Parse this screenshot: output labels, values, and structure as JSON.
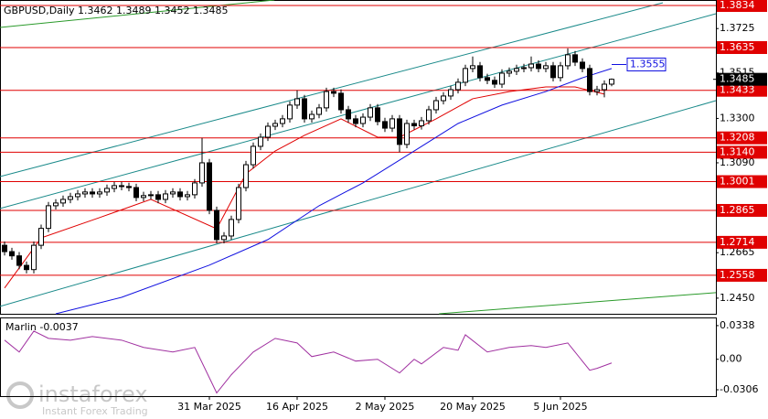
{
  "chart_data": [
    {
      "type": "candlestick",
      "title": "GBPUSD,Daily",
      "xlim": [
        -0.625,
        97.25
      ],
      "ylim": [
        1.2376,
        1.386
      ],
      "yticks": [
        1.3725,
        1.3515,
        {
          "value": 1.33,
          "label": "1.3300"
        },
        {
          "value": 1.309,
          "label": "1.3090"
        },
        1.2665,
        {
          "value": 1.245,
          "label": "1.2450"
        }
      ],
      "xticks": [
        {
          "value": 28,
          "label": "31 Mar 2025"
        },
        {
          "value": 40,
          "label": "16 Apr 2025"
        },
        {
          "value": 52,
          "label": "2 May 2025"
        },
        {
          "value": 64,
          "label": "20 May 2025"
        },
        {
          "value": 76,
          "label": "5 Jun 2025"
        }
      ],
      "open": [
        1.27,
        1.267,
        1.265,
        1.2605,
        1.2585,
        1.27,
        1.278,
        1.2887,
        1.29,
        1.2917,
        1.293,
        1.2943,
        1.2952,
        1.2943,
        1.2952,
        1.2969,
        1.2982,
        1.2978,
        1.2973,
        1.2926,
        1.2935,
        1.2939,
        1.2917,
        1.2943,
        1.2952,
        1.293,
        1.2939,
        1.2995,
        1.309,
        1.2865,
        1.2727,
        1.2744,
        1.2822,
        1.2973,
        1.3081,
        1.3168,
        1.3211,
        1.3263,
        1.3276,
        1.3298,
        1.3363,
        1.3393,
        1.3298,
        1.3319,
        1.335,
        1.3427,
        1.3419,
        1.3341,
        1.3298,
        1.3276,
        1.3306,
        1.335,
        1.3285,
        1.3254,
        1.3298,
        1.3177,
        1.3276,
        1.3265,
        1.3289,
        1.3341,
        1.3384,
        1.3406,
        1.3436,
        1.3471,
        1.3536,
        1.3549,
        1.3493,
        1.348,
        1.3462,
        1.3514,
        1.3523,
        1.3536,
        1.354,
        1.3557,
        1.3536,
        1.3549,
        1.3493,
        1.3549,
        1.3601,
        1.3566,
        1.3536,
        1.3427,
        1.3436,
        1.3462
      ],
      "high": [
        1.2718,
        1.2688,
        1.2668,
        1.2623,
        1.2718,
        1.2798,
        1.2905,
        1.2918,
        1.2935,
        1.2948,
        1.2961,
        1.297,
        1.297,
        1.297,
        1.2987,
        1.3,
        1.3,
        1.2996,
        1.2991,
        1.2953,
        1.2957,
        1.2957,
        1.2961,
        1.297,
        1.297,
        1.2957,
        1.3013,
        1.3208,
        1.3108,
        1.2883,
        1.2762,
        1.284,
        1.2991,
        1.3099,
        1.3186,
        1.3229,
        1.3281,
        1.3294,
        1.3316,
        1.3381,
        1.3433,
        1.3411,
        1.3337,
        1.3368,
        1.3445,
        1.3445,
        1.3437,
        1.3359,
        1.3316,
        1.3324,
        1.3368,
        1.3368,
        1.3303,
        1.3316,
        1.3316,
        1.3294,
        1.3294,
        1.3307,
        1.3359,
        1.3402,
        1.3424,
        1.3454,
        1.3489,
        1.3554,
        1.3593,
        1.3567,
        1.3511,
        1.3498,
        1.3532,
        1.3541,
        1.3554,
        1.3558,
        1.3593,
        1.3575,
        1.3567,
        1.3567,
        1.3567,
        1.3631,
        1.3619,
        1.3584,
        1.3554,
        1.3454,
        1.348,
        1.3489
      ],
      "low": [
        1.2652,
        1.2632,
        1.2587,
        1.2567,
        1.2567,
        1.2682,
        1.2762,
        1.2869,
        1.2882,
        1.2899,
        1.2912,
        1.2925,
        1.2925,
        1.2925,
        1.2934,
        1.2951,
        1.296,
        1.2955,
        1.2908,
        1.2908,
        1.2917,
        1.2899,
        1.2899,
        1.2925,
        1.2912,
        1.2912,
        1.2921,
        1.2977,
        1.2847,
        1.2709,
        1.2709,
        1.2726,
        1.2804,
        1.2955,
        1.3063,
        1.315,
        1.3193,
        1.3245,
        1.3258,
        1.328,
        1.3345,
        1.328,
        1.328,
        1.3301,
        1.3332,
        1.3401,
        1.3323,
        1.328,
        1.3258,
        1.3258,
        1.3288,
        1.3267,
        1.3236,
        1.3236,
        1.314,
        1.3159,
        1.3247,
        1.3247,
        1.3271,
        1.3323,
        1.3366,
        1.3388,
        1.3418,
        1.3453,
        1.3518,
        1.3475,
        1.3462,
        1.3444,
        1.3444,
        1.3496,
        1.3505,
        1.3518,
        1.3522,
        1.3518,
        1.3518,
        1.3475,
        1.3475,
        1.3531,
        1.3548,
        1.3518,
        1.3409,
        1.3409,
        1.34,
        1.3452
      ],
      "close": [
        1.267,
        1.265,
        1.2605,
        1.2585,
        1.27,
        1.278,
        1.2887,
        1.29,
        1.2917,
        1.293,
        1.2943,
        1.2952,
        1.2943,
        1.2952,
        1.2969,
        1.2982,
        1.2978,
        1.2973,
        1.2926,
        1.2935,
        1.2939,
        1.2917,
        1.2943,
        1.2952,
        1.293,
        1.2939,
        1.2995,
        1.309,
        1.2865,
        1.2727,
        1.2744,
        1.2822,
        1.2973,
        1.3081,
        1.3168,
        1.3211,
        1.3263,
        1.3276,
        1.3298,
        1.3363,
        1.3393,
        1.3298,
        1.3319,
        1.335,
        1.3427,
        1.3419,
        1.3341,
        1.3298,
        1.3276,
        1.3306,
        1.335,
        1.3285,
        1.3254,
        1.3298,
        1.3177,
        1.3276,
        1.3265,
        1.3289,
        1.3341,
        1.3384,
        1.3406,
        1.3436,
        1.3471,
        1.3536,
        1.3549,
        1.3493,
        1.348,
        1.3462,
        1.3514,
        1.3523,
        1.3536,
        1.354,
        1.3557,
        1.3536,
        1.3549,
        1.3493,
        1.3549,
        1.3601,
        1.3566,
        1.3536,
        1.3427,
        1.3436,
        1.3462,
        1.3485
      ],
      "candle_color": "#000000",
      "series": [
        {
          "color": "#e00000",
          "x": [
            0,
            5,
            13,
            20,
            29,
            33,
            37,
            41,
            46,
            51,
            54,
            59,
            64,
            69,
            74,
            78,
            82
          ],
          "values": [
            1.2498,
            1.2735,
            1.2831,
            1.2917,
            1.2778,
            1.3038,
            1.3146,
            1.322,
            1.3298,
            1.3211,
            1.3211,
            1.3298,
            1.3393,
            1.3427,
            1.3449,
            1.3449,
            1.3415
          ]
        },
        {
          "color": "#1010e0",
          "x": [
            7,
            16,
            28,
            36,
            43,
            49,
            56,
            62,
            68,
            74,
            79,
            83
          ],
          "values": [
            1.2376,
            1.2454,
            1.2606,
            1.2727,
            1.2887,
            1.2995,
            1.3146,
            1.3276,
            1.3363,
            1.3427,
            1.3492,
            1.3536
          ]
        }
      ],
      "trendlines": [
        {
          "color": "#1a8a8a",
          "x": [
            -0.625,
            90
          ],
          "values": [
            1.3025,
            1.3847
          ]
        },
        {
          "color": "#1a8a8a",
          "x": [
            -0.625,
            97.25
          ],
          "values": [
            1.2874,
            1.3795
          ]
        },
        {
          "color": "#1a8a8a",
          "x": [
            -0.625,
            97.25
          ],
          "values": [
            1.2411,
            1.3384
          ]
        },
        {
          "color": "#2a9a2a",
          "x": [
            -0.625,
            36.9
          ],
          "values": [
            1.373,
            1.386
          ]
        },
        {
          "color": "#2a9a2a",
          "x": [
            59.4,
            97.25
          ],
          "values": [
            1.2376,
            1.2476
          ]
        }
      ],
      "levels": {
        "color": "#e00000",
        "values": [
          1.3834,
          1.3635,
          1.3433,
          1.3208,
          {
            "value": 1.314,
            "label": "1.3140"
          },
          1.3001,
          1.2865,
          1.2714,
          1.2558
        ]
      },
      "target": {
        "value": 1.3555,
        "color": "#1010e0"
      }
    },
    {
      "type": "line",
      "title": "Marlin",
      "color": "#a030a0",
      "ylim": [
        -0.037,
        0.042
      ],
      "yticks": [
        0.0338,
        {
          "value": 0,
          "label": "0.00"
        },
        -0.0306
      ],
      "x": [
        0,
        2,
        4,
        6,
        9,
        12,
        16,
        19,
        23,
        26,
        29,
        31,
        34,
        37,
        40,
        42,
        45,
        48,
        51,
        54,
        56,
        57,
        60,
        62,
        63,
        66,
        69,
        72,
        74,
        77,
        80,
        81,
        83
      ],
      "values": [
        0.0192,
        0.0073,
        0.0283,
        0.021,
        0.0192,
        0.0228,
        0.0192,
        0.0119,
        0.0073,
        0.0119,
        -0.0338,
        -0.0155,
        0.0073,
        0.021,
        0.0164,
        0.0027,
        0.0073,
        -0.0018,
        0,
        -0.0137,
        0,
        -0.0046,
        0.0119,
        0.0091,
        0.0246,
        0.0073,
        0.0119,
        0.0137,
        0.0119,
        0.0164,
        -0.011,
        -0.0091,
        -0.0037
      ]
    }
  ],
  "watermark": {
    "brand": "instaforex",
    "tagline": "Instant Forex Trading"
  }
}
